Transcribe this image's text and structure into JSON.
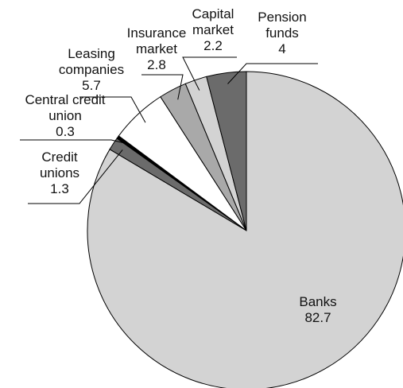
{
  "chart_data": {
    "type": "pie",
    "categories": [
      "Banks",
      "Credit unions",
      "Central credit union",
      "Leasing companies",
      "Insurance market",
      "Capital market",
      "Pension funds"
    ],
    "values": [
      82.7,
      1.3,
      0.3,
      5.7,
      2.8,
      2.2,
      4
    ],
    "colors": [
      "#d3d3d3",
      "#6b6b6b",
      "#000000",
      "#ffffff",
      "#a9a9a9",
      "#d3d3d3",
      "#6b6b6b"
    ]
  }
}
